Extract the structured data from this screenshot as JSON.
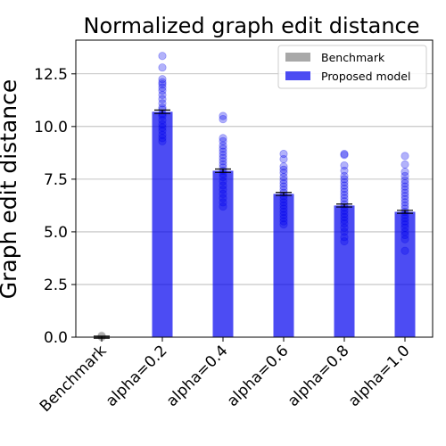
{
  "chart_data": {
    "type": "bar",
    "title": "Normalized graph edit distance",
    "xlabel": "",
    "ylabel": "Graph edit distance",
    "ylim": [
      0,
      14.1
    ],
    "yticks": [
      "0.0",
      "2.5",
      "5.0",
      "7.5",
      "10.0",
      "12.5"
    ],
    "grid": "horizontal",
    "legend_position": "top-right",
    "categories": [
      "Benchmark",
      "alpha=0.2",
      "alpha=0.4",
      "alpha=0.6",
      "alpha=0.8",
      "alpha=1.0"
    ],
    "series": [
      {
        "name": "Benchmark",
        "color": "#999999",
        "values": [
          0.0,
          null,
          null,
          null,
          null,
          null
        ]
      },
      {
        "name": "Proposed model",
        "color": "#0000ee",
        "values": [
          null,
          10.7,
          7.9,
          6.8,
          6.25,
          5.95
        ]
      }
    ],
    "error": [
      0.05,
      0.08,
      0.08,
      0.07,
      0.07,
      0.07
    ],
    "points": [
      [
        0.0,
        0.02,
        0.05,
        0.08
      ],
      [
        13.35,
        12.8,
        12.25,
        12.1,
        12.0,
        11.85,
        11.7,
        11.5,
        11.3,
        11.1,
        10.9,
        10.8,
        10.6,
        10.5,
        10.3,
        10.1,
        9.95,
        9.8,
        9.6,
        9.45,
        9.3
      ],
      [
        10.5,
        10.35,
        9.45,
        9.3,
        9.1,
        8.95,
        8.8,
        8.65,
        8.5,
        8.35,
        8.2,
        8.05,
        7.9,
        7.75,
        7.6,
        7.4,
        7.2,
        7.0,
        6.8,
        6.6,
        6.4,
        6.2
      ],
      [
        8.7,
        8.45,
        8.1,
        7.95,
        7.8,
        7.6,
        7.45,
        7.3,
        7.15,
        7.0,
        6.85,
        6.7,
        6.55,
        6.4,
        6.25,
        6.1,
        5.95,
        5.8,
        5.65,
        5.5,
        5.35
      ],
      [
        8.7,
        8.65,
        8.15,
        7.9,
        7.65,
        7.5,
        7.35,
        7.2,
        7.05,
        6.9,
        6.75,
        6.6,
        6.45,
        6.3,
        6.15,
        6.0,
        5.85,
        5.7,
        5.55,
        5.4,
        5.2,
        5.0,
        4.75,
        4.55
      ],
      [
        8.6,
        8.2,
        7.85,
        7.65,
        7.45,
        7.3,
        7.15,
        7.0,
        6.85,
        6.7,
        6.55,
        6.4,
        6.25,
        6.1,
        5.95,
        5.8,
        5.65,
        5.5,
        5.35,
        5.2,
        5.0,
        4.85,
        4.65,
        4.1
      ]
    ]
  }
}
